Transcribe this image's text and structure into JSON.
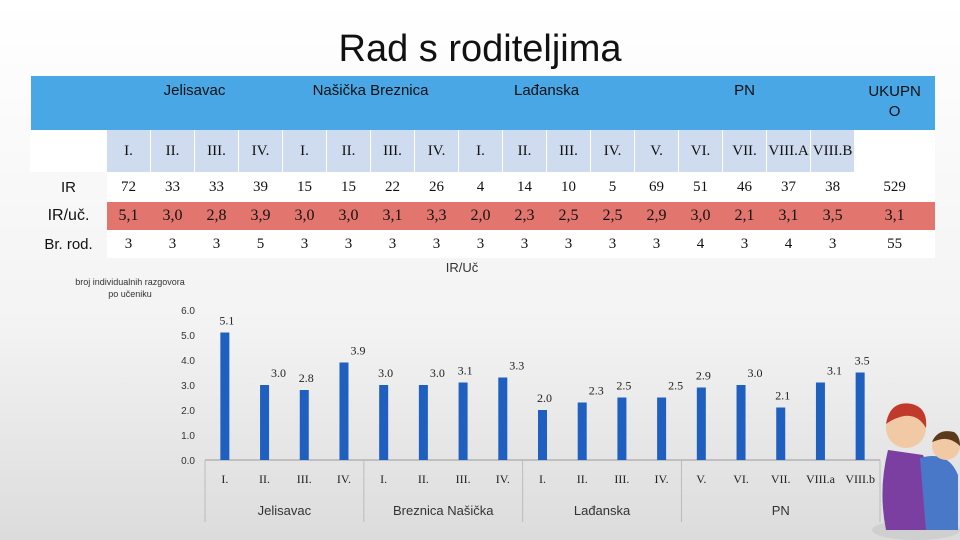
{
  "title": "Rad s roditeljima",
  "table": {
    "groups": [
      {
        "label": "Jelisavac",
        "span": 4
      },
      {
        "label": "Našička Breznica",
        "span": 4
      },
      {
        "label": "Lađanska",
        "span": 4
      },
      {
        "label": "PN",
        "span": 5
      },
      {
        "label": "UKUPNO",
        "span": 1
      }
    ],
    "grades": [
      "I.",
      "II.",
      "III.",
      "IV.",
      "I.",
      "II.",
      "III.",
      "IV.",
      "I.",
      "II.",
      "III.",
      "IV.",
      "V.",
      "VI.",
      "VII.",
      "VIII.A",
      "VIII.B",
      ""
    ],
    "rows": [
      {
        "label": "IR",
        "values": [
          "72",
          "33",
          "33",
          "39",
          "15",
          "15",
          "22",
          "26",
          "4",
          "14",
          "10",
          "5",
          "69",
          "51",
          "46",
          "37",
          "38",
          "529"
        ]
      },
      {
        "label": "IR/uč.",
        "values": [
          "5,1",
          "3,0",
          "2,8",
          "3,9",
          "3,0",
          "3,0",
          "3,1",
          "3,3",
          "2,0",
          "2,3",
          "2,5",
          "2,5",
          "2,9",
          "3,0",
          "2,1",
          "3,1",
          "3,5",
          "3,1"
        ]
      },
      {
        "label": "Br. rod.",
        "values": [
          "3",
          "3",
          "3",
          "5",
          "3",
          "3",
          "3",
          "3",
          "3",
          "3",
          "3",
          "3",
          "3",
          "4",
          "3",
          "4",
          "3",
          "55"
        ]
      }
    ]
  },
  "chart_data": {
    "type": "bar",
    "title": "IR/Uč",
    "ylabel": "broj individualnih razgovora po učeniku",
    "ylim": [
      0.0,
      6.0
    ],
    "yticks": [
      "0.0",
      "1.0",
      "2.0",
      "3.0",
      "4.0",
      "5.0",
      "6.0"
    ],
    "categories": [
      "I.",
      "II.",
      "III.",
      "IV.",
      "I.",
      "II.",
      "III.",
      "IV.",
      "I.",
      "II.",
      "III.",
      "IV.",
      "V.",
      "VI.",
      "VII.",
      "VIII.a",
      "VIII.b"
    ],
    "values": [
      5.1,
      3.0,
      2.8,
      3.9,
      3.0,
      3.0,
      3.1,
      3.3,
      2.0,
      2.3,
      2.5,
      2.5,
      2.9,
      3.0,
      2.1,
      3.1,
      3.5
    ],
    "value_labels": [
      "5.1",
      "3.0",
      "2.8",
      "3.9",
      "3.0",
      "3.0",
      "3.1",
      "3.3",
      "2.0",
      "2.3",
      "2.5",
      "2.5",
      "2.9",
      "3.0",
      "2.1",
      "3.1",
      "3.5"
    ],
    "groups": [
      {
        "label": "Jelisavac",
        "start": 0,
        "count": 4
      },
      {
        "label": "Breznica Našička",
        "start": 4,
        "count": 4
      },
      {
        "label": "Lađanska",
        "start": 8,
        "count": 4
      },
      {
        "label": "PN",
        "start": 12,
        "count": 5
      }
    ],
    "bar_color": "#1e5fbf",
    "grid": false
  }
}
